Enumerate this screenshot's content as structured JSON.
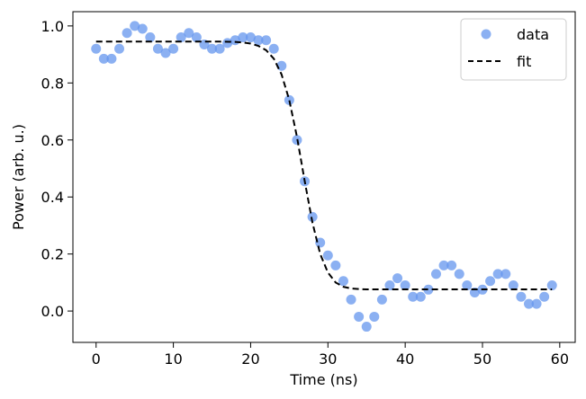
{
  "chart_data": {
    "type": "line",
    "title": "",
    "xlabel": "Time (ns)",
    "ylabel": "Power (arb. u.)",
    "xlim": [
      -3,
      62
    ],
    "ylim": [
      -0.11,
      1.05
    ],
    "xticks": [
      0,
      10,
      20,
      30,
      40,
      50,
      60
    ],
    "yticks": [
      0.0,
      0.2,
      0.4,
      0.6,
      0.8,
      1.0
    ],
    "grid": false,
    "legend_position": "top-right",
    "colors": {
      "data": "#6495ed",
      "fit": "#000000"
    },
    "series": [
      {
        "name": "data",
        "style": "markers",
        "x": [
          0,
          1,
          2,
          3,
          4,
          5,
          6,
          7,
          8,
          9,
          10,
          11,
          12,
          13,
          14,
          15,
          16,
          17,
          18,
          19,
          20,
          21,
          22,
          23,
          24,
          25,
          26,
          27,
          28,
          29,
          30,
          31,
          32,
          33,
          34,
          35,
          36,
          37,
          38,
          39,
          40,
          41,
          42,
          43,
          44,
          45,
          46,
          47,
          48,
          49,
          50,
          51,
          52,
          53,
          54,
          55,
          56,
          57,
          58,
          59
        ],
        "y": [
          0.92,
          0.885,
          0.885,
          0.92,
          0.975,
          1.0,
          0.99,
          0.96,
          0.92,
          0.905,
          0.92,
          0.96,
          0.975,
          0.96,
          0.935,
          0.92,
          0.92,
          0.94,
          0.95,
          0.96,
          0.96,
          0.95,
          0.95,
          0.92,
          0.86,
          0.74,
          0.6,
          0.455,
          0.33,
          0.24,
          0.195,
          0.16,
          0.105,
          0.04,
          -0.02,
          -0.055,
          -0.02,
          0.04,
          0.09,
          0.115,
          0.09,
          0.05,
          0.05,
          0.075,
          0.13,
          0.16,
          0.16,
          0.13,
          0.09,
          0.065,
          0.075,
          0.105,
          0.13,
          0.13,
          0.09,
          0.05,
          0.025,
          0.025,
          0.05,
          0.09
        ]
      },
      {
        "name": "fit",
        "style": "dashed",
        "x": [
          0,
          2,
          4,
          6,
          8,
          10,
          12,
          14,
          16,
          18,
          19,
          20,
          21,
          22,
          23,
          24,
          25,
          26,
          27,
          28,
          29,
          30,
          31,
          32,
          33,
          34,
          35,
          36,
          38,
          40,
          42,
          44,
          46,
          48,
          50,
          52,
          54,
          56,
          58,
          59
        ],
        "y": [
          0.945,
          0.945,
          0.945,
          0.945,
          0.945,
          0.945,
          0.945,
          0.945,
          0.945,
          0.944,
          0.942,
          0.938,
          0.93,
          0.915,
          0.885,
          0.83,
          0.74,
          0.61,
          0.455,
          0.31,
          0.2,
          0.135,
          0.1,
          0.085,
          0.079,
          0.077,
          0.076,
          0.076,
          0.076,
          0.076,
          0.076,
          0.076,
          0.076,
          0.076,
          0.076,
          0.076,
          0.076,
          0.076,
          0.076,
          0.076
        ]
      }
    ],
    "x_tick_labels": [
      "0",
      "10",
      "20",
      "30",
      "40",
      "50",
      "60"
    ],
    "y_tick_labels": [
      "0.0",
      "0.2",
      "0.4",
      "0.6",
      "0.8",
      "1.0"
    ],
    "legend": {
      "data_label": "data",
      "fit_label": "fit"
    }
  }
}
